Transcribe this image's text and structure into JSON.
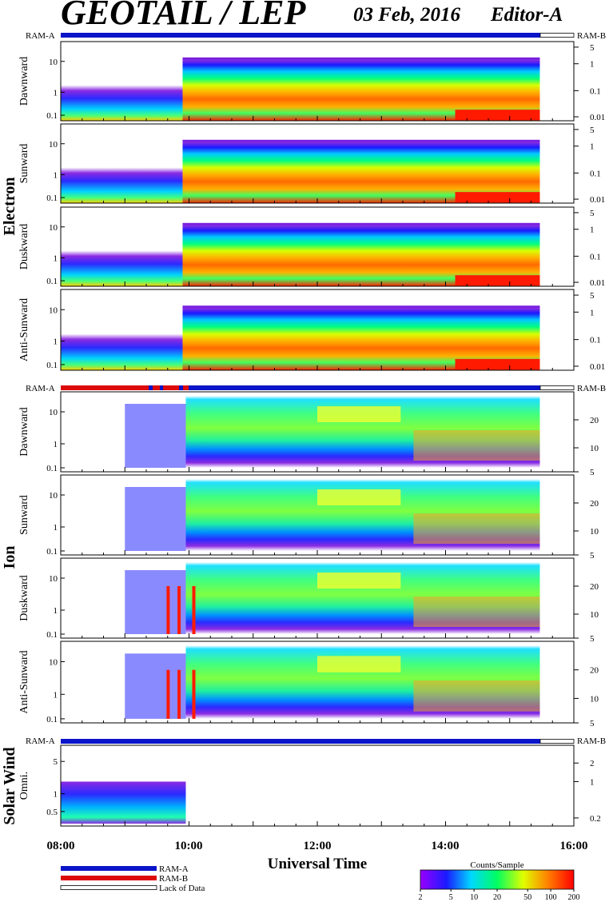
{
  "header": {
    "title": "GEOTAIL / LEP",
    "date": "03 Feb, 2016",
    "editor": "Editor-A"
  },
  "ram_labels": {
    "a": "RAM-A",
    "b": "RAM-B"
  },
  "groups": [
    {
      "label": "Electron"
    },
    {
      "label": "Ion"
    },
    {
      "label": "Solar Wind"
    }
  ],
  "panels": [
    {
      "label": "Dawnward",
      "left_ticks": [
        "10",
        "1",
        "0.1"
      ],
      "right_ticks": [
        "5",
        "1",
        "0.1",
        "0.01"
      ]
    },
    {
      "label": "Sunward",
      "left_ticks": [
        "10",
        "1",
        "0.1"
      ],
      "right_ticks": [
        "5",
        "1",
        "0.1",
        "0.01"
      ]
    },
    {
      "label": "Duskward",
      "left_ticks": [
        "10",
        "1",
        "0.1"
      ],
      "right_ticks": [
        "5",
        "1",
        "0.1",
        "0.01"
      ]
    },
    {
      "label": "Anti-Sunward",
      "left_ticks": [
        "10",
        "1",
        "0.1"
      ],
      "right_ticks": [
        "5",
        "1",
        "0.1",
        "0.01"
      ]
    },
    {
      "label": "Dawnward",
      "left_ticks": [
        "10",
        "1",
        "0.1"
      ],
      "right_ticks": [
        "20",
        "10",
        "5"
      ]
    },
    {
      "label": "Sunward",
      "left_ticks": [
        "10",
        "1",
        "0.1"
      ],
      "right_ticks": [
        "20",
        "10",
        "5"
      ]
    },
    {
      "label": "Duskward",
      "left_ticks": [
        "10",
        "1",
        "0.1"
      ],
      "right_ticks": [
        "20",
        "10",
        "5"
      ]
    },
    {
      "label": "Anti-Sunward",
      "left_ticks": [
        "10",
        "1",
        "0.1"
      ],
      "right_ticks": [
        "20",
        "10",
        "5"
      ]
    },
    {
      "label": "Omni.",
      "left_ticks": [
        "5",
        "1",
        "0.5"
      ],
      "right_ticks": [
        "2",
        "1",
        "0.2"
      ]
    }
  ],
  "x_axis": {
    "label": "Universal Time",
    "ticks": [
      "08:00",
      "10:00",
      "12:00",
      "14:00",
      "16:00"
    ]
  },
  "legend": {
    "ram_a": "RAM-A",
    "ram_b": "RAM-B",
    "lack": "Lack of Data",
    "colorbar_title": "Counts/Sample",
    "colorbar_ticks": [
      "2",
      "5",
      "10",
      "20",
      "50",
      "100",
      "200"
    ],
    "colors": {
      "ram_a": "#0a14c8",
      "ram_b": "#dc0a0a"
    }
  },
  "chart_data": {
    "type": "heatmap",
    "title": "GEOTAIL / LEP",
    "xlabel": "Universal Time",
    "xlim": [
      "08:00",
      "16:00"
    ],
    "x_ticks": [
      "08:00",
      "10:00",
      "12:00",
      "14:00",
      "16:00"
    ],
    "colorbar": {
      "label": "Counts/Sample",
      "range": [
        2,
        200
      ],
      "scale": "log"
    },
    "panels": [
      {
        "group": "Electron",
        "name": "Dawnward",
        "yscale": "log"
      },
      {
        "group": "Electron",
        "name": "Sunward",
        "yscale": "log"
      },
      {
        "group": "Electron",
        "name": "Duskward",
        "yscale": "log"
      },
      {
        "group": "Electron",
        "name": "Anti-Sunward",
        "yscale": "log"
      },
      {
        "group": "Ion",
        "name": "Dawnward",
        "yscale": "log"
      },
      {
        "group": "Ion",
        "name": "Sunward",
        "yscale": "log"
      },
      {
        "group": "Ion",
        "name": "Duskward",
        "yscale": "log"
      },
      {
        "group": "Ion",
        "name": "Anti-Sunward",
        "yscale": "log"
      },
      {
        "group": "Solar Wind",
        "name": "Omni.",
        "yscale": "log"
      }
    ],
    "data_end": "15:28"
  }
}
